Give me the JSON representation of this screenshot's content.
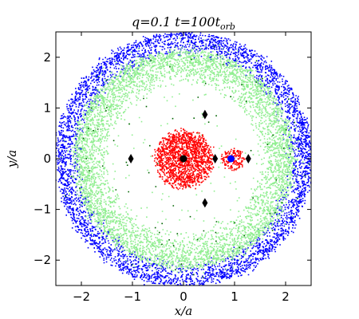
{
  "chart_data": {
    "type": "scatter",
    "title": {
      "pre": "q=0.1 t=100t",
      "sub": "orb"
    },
    "xlabel": "x/a",
    "ylabel": "y/a",
    "xlim": [
      -2.5,
      2.5
    ],
    "ylim": [
      -2.5,
      2.5
    ],
    "xticks": [
      -2,
      -1,
      0,
      1,
      2
    ],
    "yticks": [
      -2,
      -1,
      0,
      1,
      2
    ],
    "xtick_labels": [
      "−2",
      "−1",
      "0",
      "1",
      "2"
    ],
    "ytick_labels": [
      "−2",
      "−1",
      "0",
      "1",
      "2"
    ],
    "grid": false,
    "series": [
      {
        "kind": "ring",
        "color": "#0000ff",
        "r_inner": 2.0,
        "r_outer": 2.5,
        "center": [
          0,
          0
        ],
        "count": 4200
      },
      {
        "kind": "ring",
        "color": "#90ee90",
        "r_inner": 1.45,
        "r_outer": 2.15,
        "center": [
          0,
          0
        ],
        "count": 5200
      },
      {
        "kind": "scatter-sparse",
        "color": "#90ee90",
        "r_inner": 0.3,
        "r_outer": 2.4,
        "center": [
          0,
          0
        ],
        "count": 260
      },
      {
        "kind": "scatter-sparse",
        "color": "#006400",
        "r_inner": 0.3,
        "r_outer": 2.45,
        "center": [
          0,
          0
        ],
        "count": 90
      },
      {
        "kind": "disk",
        "color": "#ff0000",
        "radius": 0.55,
        "center": [
          0,
          0
        ],
        "count": 1500
      },
      {
        "kind": "disk",
        "color": "#ff0000",
        "radius": 0.22,
        "center": [
          0.95,
          0
        ],
        "count": 160
      }
    ],
    "markers": [
      {
        "name": "primary",
        "x": 0,
        "y": 0,
        "shape": "circle",
        "color": "#000000"
      },
      {
        "name": "secondary",
        "x": 0.93,
        "y": 0,
        "shape": "circle",
        "color": "#0000ff"
      },
      {
        "name": "L1",
        "x": 0.62,
        "y": 0,
        "shape": "diamond",
        "color": "#000000"
      },
      {
        "name": "L2",
        "x": 1.27,
        "y": 0,
        "shape": "diamond",
        "color": "#000000"
      },
      {
        "name": "L3",
        "x": -1.03,
        "y": 0,
        "shape": "diamond",
        "color": "#000000"
      },
      {
        "name": "L4",
        "x": 0.42,
        "y": 0.87,
        "shape": "diamond",
        "color": "#000000"
      },
      {
        "name": "L5",
        "x": 0.42,
        "y": -0.87,
        "shape": "diamond",
        "color": "#000000"
      }
    ]
  }
}
